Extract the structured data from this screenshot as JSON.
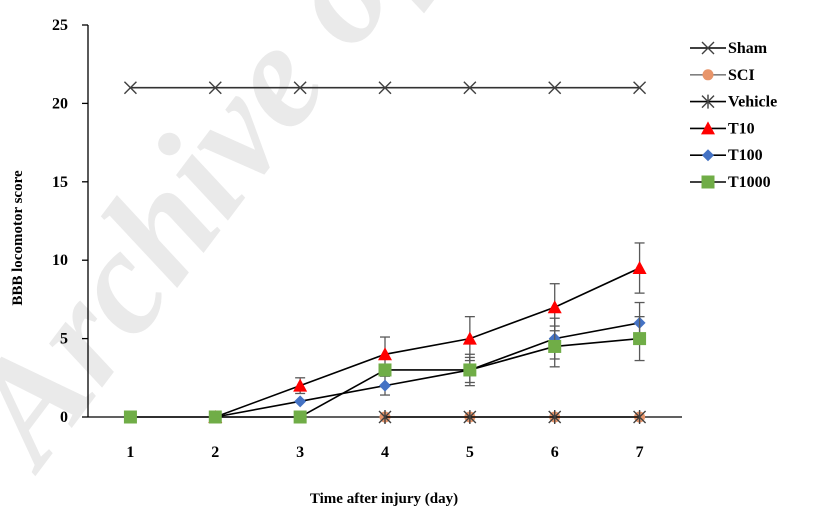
{
  "chart_data": {
    "type": "line",
    "title": "",
    "xlabel": "Time after injury (day)",
    "ylabel": "BBB locomotor score",
    "x": [
      1,
      2,
      3,
      4,
      5,
      6,
      7
    ],
    "xlim": [
      0.5,
      7.5
    ],
    "ylim": [
      0,
      25
    ],
    "yticks": [
      0,
      5,
      10,
      15,
      20,
      25
    ],
    "grid": false,
    "legend_position": "right",
    "series": [
      {
        "name": "Sham",
        "marker": "x",
        "color": "#404040",
        "points": [
          [
            1,
            21
          ],
          [
            2,
            21
          ],
          [
            3,
            21
          ],
          [
            4,
            21
          ],
          [
            5,
            21
          ],
          [
            6,
            21
          ],
          [
            7,
            21
          ]
        ]
      },
      {
        "name": "SCI",
        "marker": "circle",
        "color": "#e8956a",
        "points": [
          [
            4,
            0
          ],
          [
            5,
            0
          ],
          [
            6,
            0
          ],
          [
            7,
            0
          ]
        ]
      },
      {
        "name": "Vehicle",
        "marker": "star",
        "color": "#404040",
        "points": [
          [
            4,
            0
          ],
          [
            5,
            0
          ],
          [
            6,
            0
          ],
          [
            7,
            0
          ]
        ]
      },
      {
        "name": "T10",
        "marker": "triangle",
        "color": "#ff0000",
        "points": [
          [
            2,
            0
          ],
          [
            3,
            2
          ],
          [
            4,
            4
          ],
          [
            5,
            5
          ],
          [
            6,
            7
          ],
          [
            7,
            9.5
          ]
        ],
        "errors": [
          null,
          0.5,
          1.1,
          1.4,
          1.5,
          1.6
        ]
      },
      {
        "name": "T100",
        "marker": "diamond",
        "color": "#4472c4",
        "points": [
          [
            2,
            0
          ],
          [
            3,
            1
          ],
          [
            4,
            2
          ],
          [
            5,
            3
          ],
          [
            6,
            5
          ],
          [
            7,
            6
          ]
        ],
        "errors": [
          null,
          null,
          0.6,
          1.0,
          1.3,
          1.3
        ]
      },
      {
        "name": "T1000",
        "marker": "square",
        "color": "#70ad47",
        "points": [
          [
            1,
            0
          ],
          [
            2,
            0
          ],
          [
            3,
            0
          ],
          [
            4,
            3
          ],
          [
            5,
            3
          ],
          [
            6,
            4.5
          ],
          [
            7,
            5
          ]
        ],
        "errors": [
          null,
          null,
          null,
          null,
          0.8,
          1.3,
          1.4
        ]
      }
    ]
  },
  "watermark": "Archive of SID"
}
